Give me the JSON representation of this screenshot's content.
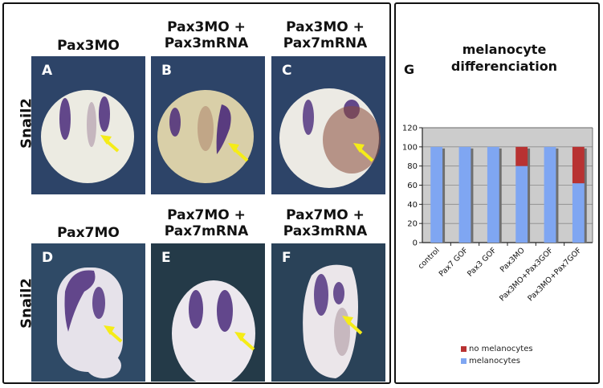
{
  "figure": {
    "left_panel": {
      "row_labels": [
        "Snail2",
        "Snail2"
      ],
      "columns_top": [
        {
          "title_lines": [
            "Pax3MO"
          ],
          "letter": "A"
        },
        {
          "title_lines": [
            "Pax3MO +",
            "Pax3mRNA"
          ],
          "letter": "B"
        },
        {
          "title_lines": [
            "Pax3MO +",
            "Pax7mRNA"
          ],
          "letter": "C"
        }
      ],
      "columns_bottom": [
        {
          "title_lines": [
            "Pax7MO"
          ],
          "letter": "D"
        },
        {
          "title_lines": [
            "Pax7MO +",
            "Pax7mRNA"
          ],
          "letter": "E"
        },
        {
          "title_lines": [
            "Pax7MO +",
            "Pax3mRNA"
          ],
          "letter": "F"
        }
      ],
      "arrow_color": "#f5ec18",
      "stain_color": "#4a2a7a"
    },
    "right_panel": {
      "panel_letter": "G"
    }
  },
  "chart_data": {
    "type": "bar",
    "stacked": true,
    "title": "melanocyte differenciation",
    "title_lines": [
      "melanocyte",
      "differenciation"
    ],
    "categories": [
      "control",
      "Pax7 GOF",
      "Pax3 GOF",
      "Pax3MO",
      "Pax3MO+Pax3GOF",
      "Pax3MO+Pax7GOF"
    ],
    "series": [
      {
        "name": "melanocytes",
        "color": "#7fa6f2",
        "values": [
          100,
          100,
          100,
          80,
          100,
          62
        ]
      },
      {
        "name": "no melanocytes",
        "color": "#b83232",
        "values": [
          0,
          0,
          0,
          20,
          0,
          38
        ]
      }
    ],
    "legend_order": [
      "no melanocytes",
      "melanocytes"
    ],
    "legend": "bottom",
    "xlabel": "",
    "ylabel": "",
    "ylim": [
      0,
      120
    ],
    "yticks": [
      0,
      20,
      40,
      60,
      80,
      100,
      120
    ],
    "grid": true,
    "plot_background": "#cccccc"
  }
}
